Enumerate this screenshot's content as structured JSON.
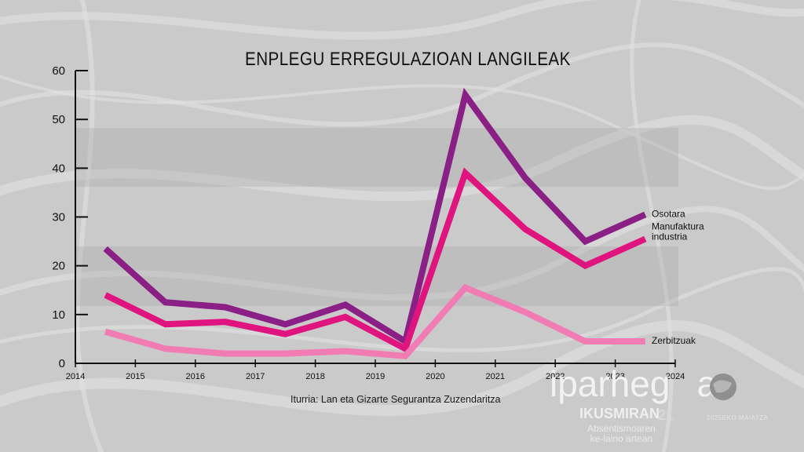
{
  "chart_data": {
    "type": "line",
    "title": "ENPLEGU ERREGULAZIOAN LANGILEAK",
    "x_ticks": [
      "2014",
      "2015",
      "2016",
      "2017",
      "2018",
      "2019",
      "2020",
      "2021",
      "2022",
      "2023",
      "2024"
    ],
    "y_ticks": [
      "0",
      "10",
      "20",
      "30",
      "40",
      "50",
      "60"
    ],
    "ylim": [
      0,
      60
    ],
    "xlim": [
      2014,
      2024
    ],
    "x": [
      2014.5,
      2015.5,
      2016.5,
      2017.5,
      2018.5,
      2019.5,
      2020.5,
      2021.5,
      2022.5,
      2023.5
    ],
    "series": [
      {
        "name": "Osotara",
        "color": "#8a1f86",
        "values": [
          23.5,
          12.5,
          11.5,
          8,
          12,
          4.5,
          55,
          38,
          25,
          30.5
        ]
      },
      {
        "name": "Manufaktura industria",
        "label_lines": [
          "Manufaktura",
          "industria"
        ],
        "color": "#e0147e",
        "values": [
          14,
          8,
          8.5,
          6,
          9.5,
          3,
          39,
          27.5,
          20,
          25.5
        ]
      },
      {
        "name": "Zerbitzuak",
        "color": "#f07cb3",
        "values": [
          6.5,
          3,
          2,
          2,
          2.5,
          1.5,
          15.5,
          10.5,
          4.5,
          4.5
        ]
      }
    ],
    "legend_placement": "right, inline at line ends",
    "grid": false
  },
  "source": "Iturria: Lan eta Gizarte Segurantza Zuzendaritza",
  "brand": {
    "part1": "ipar",
    "part2": "heg",
    "part3": "a",
    "series_name": "IKUSMIRAN",
    "number": "21",
    "tagline_1": "Absentismoaren",
    "tagline_2": "ke-laino artean",
    "date": "2025EKO MAIATZA"
  }
}
